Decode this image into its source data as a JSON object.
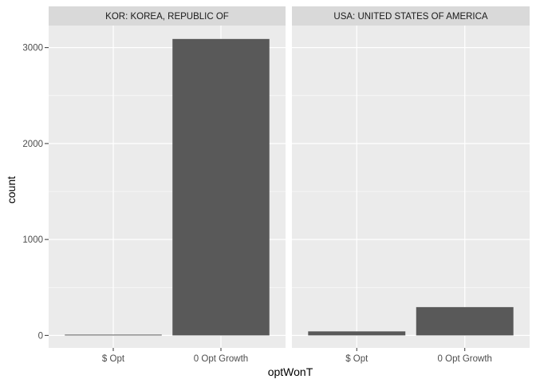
{
  "chart_data": {
    "type": "bar",
    "xlabel": "optWonT",
    "ylabel": "count",
    "categories": [
      "$ Opt",
      "0 Opt Growth"
    ],
    "ylim": [
      -130,
      3230
    ],
    "yticks": [
      0,
      1000,
      2000,
      3000
    ],
    "grid": true,
    "facets": [
      {
        "label": "KOR: KOREA, REPUBLIC OF",
        "values": [
          8,
          3090
        ]
      },
      {
        "label": "USA: UNITED STATES OF AMERICA",
        "values": [
          42,
          295
        ]
      }
    ],
    "colors": {
      "bar": "#595959",
      "panel_bg": "#ebebeb",
      "strip_bg": "#d9d9d9",
      "grid": "#ffffff"
    }
  }
}
